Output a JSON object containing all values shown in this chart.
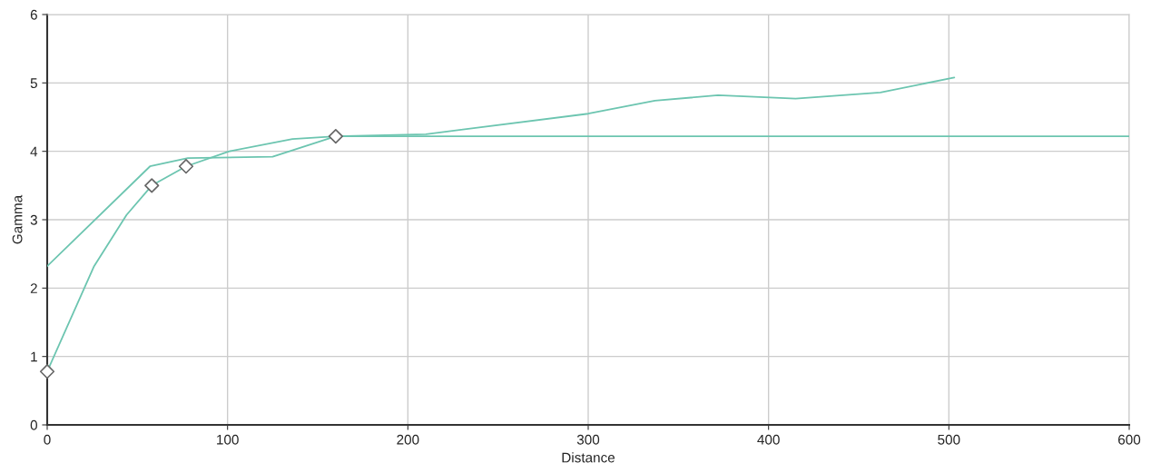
{
  "chart_data": {
    "type": "line",
    "xlabel": "Distance",
    "ylabel": "Gamma",
    "xlim": [
      0,
      600
    ],
    "xticks": [
      0,
      100,
      200,
      300,
      400,
      500,
      600
    ],
    "ylim": [
      0,
      6
    ],
    "yticks": [
      0,
      1,
      2,
      3,
      4,
      5,
      6
    ],
    "grid": true,
    "series": [
      {
        "color": "#6cc5b0",
        "marker": "none",
        "x": [
          0,
          57,
          78,
          125,
          160,
          210,
          300,
          337,
          372,
          415,
          462,
          503
        ],
        "values": [
          2.32,
          3.78,
          3.9,
          3.92,
          4.22,
          4.25,
          4.55,
          4.74,
          4.82,
          4.77,
          4.86,
          5.08
        ]
      },
      {
        "color": "#6cc5b0",
        "marker": "none",
        "x": [
          0,
          26,
          44,
          58,
          77,
          101,
          136,
          160,
          600
        ],
        "values": [
          0.78,
          2.32,
          3.07,
          3.5,
          3.78,
          4.0,
          4.18,
          4.22,
          4.22
        ]
      },
      {
        "type": "scatter",
        "color": "#ffffff",
        "marker": "diamond",
        "x": [
          0,
          58,
          77,
          160
        ],
        "values": [
          0.78,
          3.5,
          3.78,
          4.22
        ]
      }
    ]
  }
}
